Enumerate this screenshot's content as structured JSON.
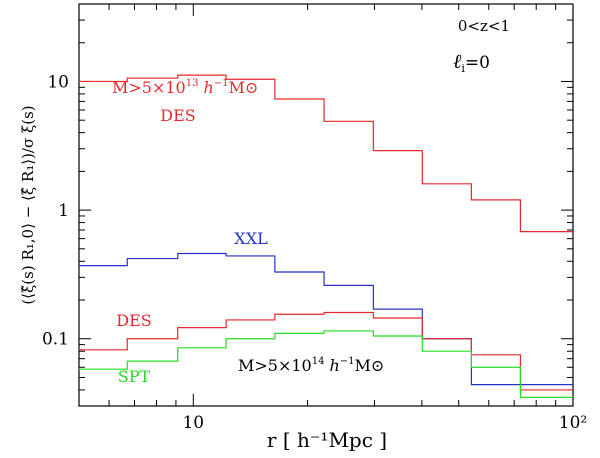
{
  "chart_data": {
    "type": "line",
    "step": true,
    "xscale": "log",
    "yscale": "log",
    "xlim": [
      5,
      100
    ],
    "ylim": [
      0.03,
      40
    ],
    "xticks": [
      {
        "v": 10,
        "label": "10"
      },
      {
        "v": 100,
        "label": "10²"
      }
    ],
    "yticks": [
      {
        "v": 0.1,
        "label": "0.1"
      },
      {
        "v": 1,
        "label": "1"
      },
      {
        "v": 10,
        "label": "10"
      }
    ],
    "xlabel": "r  [  h⁻¹Mpc  ]",
    "ylabel": "(⟨ξ̂(s) R₁,0⟩ − ⟨ξ̂ R₁⟩)/σ ξ(s)",
    "grid": false,
    "legend": "none",
    "bin_edges": [
      5,
      6.7,
      9.1,
      12.2,
      16.4,
      22.1,
      29.8,
      40.1,
      54.0,
      72.7,
      100
    ],
    "series": [
      {
        "name": "DES",
        "color": "#e8282a",
        "values": [
          10.0,
          10.6,
          11.2,
          10.4,
          7.3,
          4.9,
          2.9,
          1.6,
          1.2,
          0.68
        ]
      },
      {
        "name": "XXL",
        "color": "#2432c8",
        "values": [
          0.37,
          0.42,
          0.46,
          0.44,
          0.33,
          0.26,
          0.17,
          0.1,
          0.044,
          0.044
        ]
      },
      {
        "name": "DES",
        "color": "#e8282a",
        "values": [
          0.082,
          0.1,
          0.122,
          0.14,
          0.155,
          0.16,
          0.145,
          0.1,
          0.075,
          0.04
        ]
      },
      {
        "name": "SPT",
        "color": "#22dd22",
        "values": [
          0.058,
          0.067,
          0.085,
          0.1,
          0.11,
          0.115,
          0.105,
          0.08,
          0.06,
          0.035
        ]
      }
    ],
    "annotations": {
      "z_range": "0<z<1",
      "ell_symbol": "ℓ",
      "ell_sub": "i",
      "ell_value": "=0",
      "mass_high_prefix": "M>5×10",
      "mass_high_exp": "13",
      "mass_low_prefix": "M>5×10",
      "mass_low_exp": "14",
      "mass_h": "h",
      "mass_hexp": "−1",
      "mass_msun": "M⊙",
      "des_upper": "DES",
      "xxl": "XXL",
      "des_lower": "DES",
      "spt": "SPT"
    }
  },
  "colors": {
    "des": "#e8282a",
    "xxl": "#2432c8",
    "spt": "#22dd22"
  }
}
